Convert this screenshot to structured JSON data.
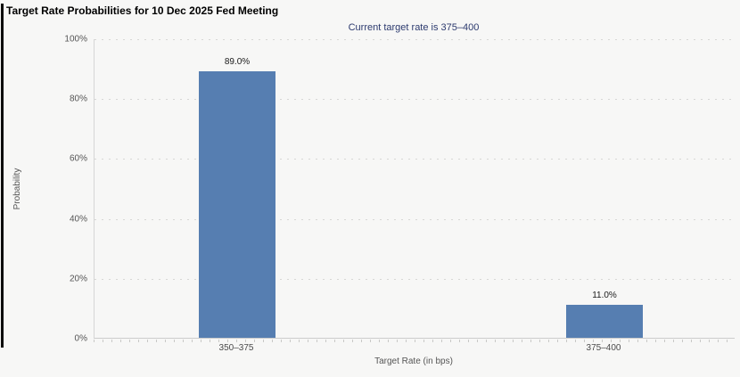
{
  "header": {
    "title": "Target Rate Probabilities for 10 Dec 2025 Fed Meeting",
    "subtitle": "Current target rate is 375–400"
  },
  "chart_data": {
    "type": "bar",
    "title": "Target Rate Probabilities for 10 Dec 2025 Fed Meeting",
    "subtitle": "Current target rate is 375–400",
    "categories": [
      "350–375",
      "375–400"
    ],
    "values": [
      89.0,
      11.0
    ],
    "value_labels": [
      "89.0%",
      "11.0%"
    ],
    "xlabel": "Target Rate (in bps)",
    "ylabel": "Probability",
    "ylim": [
      0,
      100
    ],
    "yticks": [
      0,
      20,
      40,
      60,
      80,
      100
    ],
    "ytick_labels": [
      "0%",
      "20%",
      "40%",
      "60%",
      "80%",
      "100%"
    ],
    "grid": "horizontal-dotted",
    "legend": "none",
    "colors": {
      "bar": "#567EB1",
      "subtitle_text": "#2C3A6E",
      "gridline": "#D7D7D5",
      "axis_line": "#CCCCCC",
      "tick_text": "#555555",
      "title_text": "#000000",
      "background": "#F7F7F6"
    }
  }
}
